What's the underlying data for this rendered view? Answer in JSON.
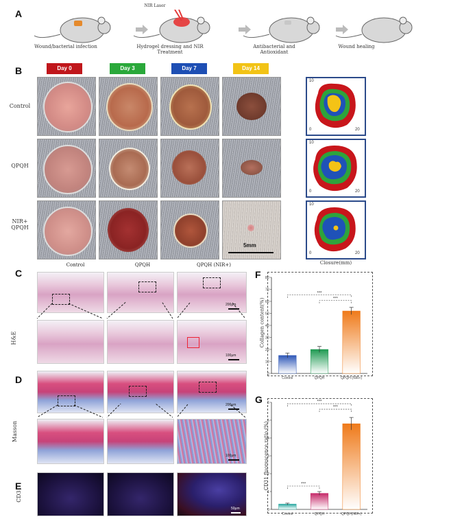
{
  "panels": {
    "A": "A",
    "B": "B",
    "C": "C",
    "D": "D",
    "E": "E",
    "F": "F",
    "G": "G"
  },
  "panel_a": {
    "steps": [
      {
        "label": "Wound/bacterial infection"
      },
      {
        "label": "Hydrogel dressing and NIR Treatment",
        "tag": "NIR Laser"
      },
      {
        "label": "Antibacterial and Antioxidant"
      },
      {
        "label": "Wound healing"
      }
    ]
  },
  "panel_b": {
    "days": [
      {
        "label": "Day 0",
        "color": "#c0161b"
      },
      {
        "label": "Day 3",
        "color": "#2aa83a"
      },
      {
        "label": "Day 7",
        "color": "#1e4fb4"
      },
      {
        "label": "Day 14",
        "color": "#f2c316"
      }
    ],
    "rows": [
      "Control",
      "QPQH",
      "NIR+ QPQH"
    ],
    "scale": "5mm",
    "closure_ticks": {
      "top": "10",
      "left": "0",
      "right": "20"
    },
    "closure_xlabel": "Closure(mm)"
  },
  "panel_c": {
    "title": "H&E",
    "columns": [
      "Control",
      "QPQH",
      "QPQH (NIR+)"
    ],
    "scale_top": "200μm",
    "scale_bottom": "100μm"
  },
  "panel_d": {
    "title": "Masson",
    "scale_top": "200μm",
    "scale_bottom": "100μm"
  },
  "panel_e": {
    "title": "CD31",
    "scale": "50μm"
  },
  "chart_data": [
    {
      "type": "bar",
      "panel": "F",
      "categories": [
        "Control",
        "QPQH",
        "QPQH (NIR+)"
      ],
      "values": [
        15,
        20,
        52
      ],
      "errors": [
        2,
        2.5,
        3
      ],
      "colors": [
        "#2f58b8",
        "#1f9a52",
        "#ef7a1a"
      ],
      "ylabel": "Collagen content(%)",
      "ylim": [
        0,
        80
      ],
      "yticks": [
        0,
        10,
        20,
        30,
        40,
        50,
        60,
        70,
        80
      ],
      "significance": [
        {
          "from": 0,
          "to": 2,
          "label": "***"
        },
        {
          "from": 1,
          "to": 2,
          "label": "***"
        }
      ]
    },
    {
      "type": "bar",
      "panel": "G",
      "categories": [
        "Control",
        "QPQH",
        "QPQH(NIR+)"
      ],
      "values": [
        0.3,
        0.9,
        4.8
      ],
      "errors": [
        0.05,
        0.1,
        0.35
      ],
      "colors": [
        "#2aa8a0",
        "#c62a6a",
        "#ef7a1a"
      ],
      "ylabel": "CD31 fluorescence ratio (%)",
      "ylim": [
        0,
        6
      ],
      "yticks": [
        0,
        1,
        2,
        3,
        4,
        5,
        6
      ],
      "significance": [
        {
          "from": 0,
          "to": 1,
          "label": "***"
        },
        {
          "from": 0,
          "to": 2,
          "label": "***"
        },
        {
          "from": 1,
          "to": 2,
          "label": "***"
        }
      ]
    }
  ]
}
